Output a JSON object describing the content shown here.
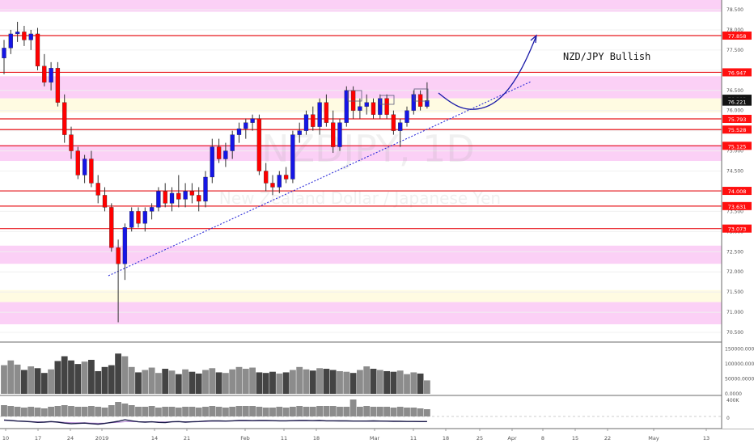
{
  "watermark": {
    "symbol": "NZDJPY, 1D",
    "name": "New Zealand Dollar / Japanese Yen"
  },
  "annotation": {
    "title": "NZD/JPY Bullish"
  },
  "colors": {
    "up_candle": "#1515e6",
    "down_candle": "#ff0000",
    "resistance_line": "#e8191f",
    "pink_zone": "#fbd0f6",
    "yellow_zone": "#fffbe2",
    "trendline": "#2b2bd9",
    "arrow": "#1a1aa8",
    "volume_up": "#8c8c8c",
    "volume_down": "#444444",
    "indicator_bar": "#8c8c8c",
    "price_tag": "#ff1010"
  },
  "chart_data": {
    "type": "candlestick",
    "price_axis": {
      "ylim": [
        70.4,
        78.85
      ],
      "ticks": [
        "78.500",
        "78.000",
        "77.500",
        "77.000",
        "76.500",
        "76.000",
        "75.500",
        "75.000",
        "74.500",
        "74.000",
        "73.500",
        "73.000",
        "72.500",
        "72.000",
        "71.500",
        "71.000",
        "70.500"
      ]
    },
    "time_axis": {
      "ticks": [
        "10",
        "17",
        "24",
        "2019",
        "14",
        "21",
        "Feb",
        "11",
        "18",
        "Mar",
        "11",
        "18",
        "25",
        "Apr",
        "8",
        "15",
        "22",
        "May",
        "13"
      ]
    },
    "resistance_levels": [
      {
        "value": 77.858,
        "label": "77.858"
      },
      {
        "value": 76.947,
        "label": "76.947"
      },
      {
        "value": 75.793,
        "label": "75.793"
      },
      {
        "value": 75.528,
        "label": "75.528"
      },
      {
        "value": 75.125,
        "label": "75.125"
      },
      {
        "value": 74.008,
        "label": "74.008"
      },
      {
        "value": 73.631,
        "label": "73.631"
      },
      {
        "value": 73.073,
        "label": "73.073"
      }
    ],
    "price_tags": [
      {
        "value": 76.293,
        "label": "76.293",
        "style": "dark"
      },
      {
        "value": 76.221,
        "label": "76.221",
        "style": "dark"
      }
    ],
    "zones": [
      {
        "color": "pink",
        "from": 78.45,
        "to": 78.85
      },
      {
        "color": "pink",
        "from": 76.3,
        "to": 76.85
      },
      {
        "color": "yellow",
        "from": 75.95,
        "to": 76.3
      },
      {
        "color": "pink",
        "from": 74.75,
        "to": 75.15
      },
      {
        "color": "pink",
        "from": 72.2,
        "to": 72.65
      },
      {
        "color": "yellow",
        "from": 71.25,
        "to": 71.55
      },
      {
        "color": "pink",
        "from": 70.7,
        "to": 71.25
      }
    ],
    "candles": [
      {
        "o": 77.3,
        "h": 77.75,
        "l": 76.9,
        "c": 77.55
      },
      {
        "o": 77.55,
        "h": 78.0,
        "l": 77.4,
        "c": 77.9
      },
      {
        "o": 77.9,
        "h": 78.2,
        "l": 77.7,
        "c": 77.95
      },
      {
        "o": 77.95,
        "h": 78.1,
        "l": 77.6,
        "c": 77.75
      },
      {
        "o": 77.75,
        "h": 78.0,
        "l": 77.5,
        "c": 77.9
      },
      {
        "o": 77.9,
        "h": 78.05,
        "l": 77.0,
        "c": 77.1
      },
      {
        "o": 77.1,
        "h": 77.4,
        "l": 76.6,
        "c": 76.7
      },
      {
        "o": 76.7,
        "h": 77.2,
        "l": 76.5,
        "c": 77.05
      },
      {
        "o": 77.05,
        "h": 77.2,
        "l": 76.1,
        "c": 76.2
      },
      {
        "o": 76.2,
        "h": 76.4,
        "l": 75.2,
        "c": 75.4
      },
      {
        "o": 75.4,
        "h": 75.6,
        "l": 74.8,
        "c": 75.0
      },
      {
        "o": 75.0,
        "h": 75.1,
        "l": 74.3,
        "c": 74.4
      },
      {
        "o": 74.4,
        "h": 74.9,
        "l": 74.2,
        "c": 74.8
      },
      {
        "o": 74.8,
        "h": 75.0,
        "l": 74.1,
        "c": 74.2
      },
      {
        "o": 74.2,
        "h": 74.4,
        "l": 73.7,
        "c": 73.9
      },
      {
        "o": 73.9,
        "h": 74.1,
        "l": 73.5,
        "c": 73.6
      },
      {
        "o": 73.6,
        "h": 73.7,
        "l": 72.5,
        "c": 72.6
      },
      {
        "o": 72.6,
        "h": 72.8,
        "l": 70.75,
        "c": 72.2
      },
      {
        "o": 72.2,
        "h": 73.2,
        "l": 71.8,
        "c": 73.1
      },
      {
        "o": 73.1,
        "h": 73.6,
        "l": 73.0,
        "c": 73.5
      },
      {
        "o": 73.5,
        "h": 73.6,
        "l": 73.1,
        "c": 73.2
      },
      {
        "o": 73.2,
        "h": 73.6,
        "l": 73.0,
        "c": 73.5
      },
      {
        "o": 73.5,
        "h": 73.7,
        "l": 73.3,
        "c": 73.6
      },
      {
        "o": 73.6,
        "h": 74.1,
        "l": 73.5,
        "c": 74.0
      },
      {
        "o": 74.0,
        "h": 74.2,
        "l": 73.6,
        "c": 73.7
      },
      {
        "o": 73.7,
        "h": 74.1,
        "l": 73.5,
        "c": 73.95
      },
      {
        "o": 73.95,
        "h": 74.4,
        "l": 73.6,
        "c": 73.8
      },
      {
        "o": 73.8,
        "h": 74.2,
        "l": 73.6,
        "c": 74.0
      },
      {
        "o": 74.0,
        "h": 74.2,
        "l": 73.7,
        "c": 73.9
      },
      {
        "o": 73.9,
        "h": 74.1,
        "l": 73.5,
        "c": 73.75
      },
      {
        "o": 73.75,
        "h": 74.5,
        "l": 73.6,
        "c": 74.35
      },
      {
        "o": 74.35,
        "h": 75.3,
        "l": 74.2,
        "c": 75.1
      },
      {
        "o": 75.1,
        "h": 75.3,
        "l": 74.7,
        "c": 74.8
      },
      {
        "o": 74.8,
        "h": 75.2,
        "l": 74.6,
        "c": 75.0
      },
      {
        "o": 75.0,
        "h": 75.5,
        "l": 74.8,
        "c": 75.4
      },
      {
        "o": 75.4,
        "h": 75.7,
        "l": 75.2,
        "c": 75.55
      },
      {
        "o": 75.55,
        "h": 75.8,
        "l": 75.3,
        "c": 75.7
      },
      {
        "o": 75.7,
        "h": 75.9,
        "l": 75.5,
        "c": 75.8
      },
      {
        "o": 75.8,
        "h": 75.9,
        "l": 74.4,
        "c": 74.5
      },
      {
        "o": 74.5,
        "h": 74.7,
        "l": 74.0,
        "c": 74.2
      },
      {
        "o": 74.2,
        "h": 74.4,
        "l": 73.9,
        "c": 74.1
      },
      {
        "o": 74.1,
        "h": 74.5,
        "l": 73.95,
        "c": 74.4
      },
      {
        "o": 74.4,
        "h": 74.6,
        "l": 74.2,
        "c": 74.3
      },
      {
        "o": 74.3,
        "h": 75.5,
        "l": 74.2,
        "c": 75.4
      },
      {
        "o": 75.4,
        "h": 75.7,
        "l": 75.2,
        "c": 75.5
      },
      {
        "o": 75.5,
        "h": 76.0,
        "l": 75.4,
        "c": 75.9
      },
      {
        "o": 75.9,
        "h": 76.1,
        "l": 75.5,
        "c": 75.6
      },
      {
        "o": 75.6,
        "h": 76.3,
        "l": 75.4,
        "c": 76.2
      },
      {
        "o": 76.2,
        "h": 76.4,
        "l": 75.6,
        "c": 75.7
      },
      {
        "o": 75.7,
        "h": 76.0,
        "l": 74.95,
        "c": 75.1
      },
      {
        "o": 75.1,
        "h": 75.8,
        "l": 75.0,
        "c": 75.7
      },
      {
        "o": 75.7,
        "h": 76.6,
        "l": 75.6,
        "c": 76.5
      },
      {
        "o": 76.5,
        "h": 76.6,
        "l": 75.8,
        "c": 76.0
      },
      {
        "o": 76.0,
        "h": 76.3,
        "l": 75.8,
        "c": 76.1
      },
      {
        "o": 76.1,
        "h": 76.4,
        "l": 75.9,
        "c": 76.2
      },
      {
        "o": 76.2,
        "h": 76.3,
        "l": 75.8,
        "c": 75.9
      },
      {
        "o": 75.9,
        "h": 76.4,
        "l": 75.8,
        "c": 76.3
      },
      {
        "o": 76.3,
        "h": 76.4,
        "l": 75.8,
        "c": 75.9
      },
      {
        "o": 75.9,
        "h": 76.0,
        "l": 75.4,
        "c": 75.5
      },
      {
        "o": 75.5,
        "h": 75.8,
        "l": 75.1,
        "c": 75.7
      },
      {
        "o": 75.7,
        "h": 76.1,
        "l": 75.6,
        "c": 76.0
      },
      {
        "o": 76.0,
        "h": 76.5,
        "l": 75.9,
        "c": 76.4
      },
      {
        "o": 76.4,
        "h": 76.5,
        "l": 76.0,
        "c": 76.1
      },
      {
        "o": 76.1,
        "h": 76.7,
        "l": 76.05,
        "c": 76.25
      }
    ],
    "volume_axis": {
      "ticks": [
        "150000.0000",
        "100000.0000",
        "50000.0000",
        "0.0000"
      ]
    },
    "volume": [
      96000,
      112000,
      98000,
      80000,
      92000,
      86000,
      70000,
      82000,
      110000,
      126000,
      112000,
      100000,
      108000,
      114000,
      76000,
      90000,
      96000,
      135000,
      126000,
      90000,
      72000,
      80000,
      88000,
      70000,
      84000,
      78000,
      66000,
      82000,
      74000,
      68000,
      80000,
      86000,
      72000,
      70000,
      82000,
      90000,
      84000,
      88000,
      72000,
      70000,
      74000,
      68000,
      72000,
      80000,
      90000,
      82000,
      78000,
      86000,
      84000,
      80000,
      76000,
      74000,
      70000,
      80000,
      92000,
      84000,
      80000,
      76000,
      74000,
      78000,
      66000,
      72000,
      68000,
      45000
    ],
    "indicator": {
      "axis_ticks": [
        "400K",
        "0"
      ],
      "bars": [
        14,
        13,
        12,
        11,
        12,
        11,
        10,
        12,
        13,
        14,
        13,
        12,
        12,
        13,
        12,
        11,
        14,
        18,
        16,
        14,
        12,
        12,
        13,
        11,
        12,
        12,
        11,
        12,
        12,
        11,
        12,
        13,
        12,
        11,
        12,
        13,
        13,
        13,
        12,
        11,
        11,
        12,
        11,
        12,
        13,
        12,
        12,
        13,
        13,
        13,
        12,
        12,
        21,
        12,
        13,
        12,
        12,
        12,
        11,
        12,
        11,
        11,
        10,
        9
      ],
      "line": [
        1,
        0.6,
        0.2,
        0,
        -0.4,
        -0.8,
        -0.6,
        -0.2,
        -0.6,
        -1.4,
        -1.8,
        -1.6,
        -1.4,
        -1.8,
        -2.2,
        -1.6,
        -0.8,
        0,
        1.2,
        0.4,
        -0.4,
        -0.6,
        -0.4,
        -0.8,
        -1,
        -0.4,
        -0.2,
        -0.6,
        -0.4,
        -0.2,
        0.2,
        0.4,
        0.3,
        0.2,
        0.4,
        0.6,
        0.6,
        0.5,
        0.6,
        0.6,
        0.5,
        0.4,
        0.4,
        0.5,
        0.6,
        0.6,
        0.5,
        0.6,
        0.4,
        0.4,
        0.3,
        0.3,
        0.2,
        0.2,
        0.2,
        0.3,
        0.2,
        0.1,
        0,
        0,
        -0.1,
        -0.1,
        -0.2,
        -0.2
      ],
      "signal": [
        0.8,
        0.6,
        0.3,
        0,
        -0.2,
        -0.4,
        -0.5,
        -0.4,
        -0.5,
        -0.8,
        -1,
        -1.1,
        -1.1,
        -1.3,
        -1.5,
        -1.4,
        -1.1,
        -0.8,
        -0.3,
        -0.2,
        -0.3,
        -0.4,
        -0.4,
        -0.5,
        -0.5,
        -0.4,
        -0.3,
        -0.3,
        -0.3,
        -0.2,
        -0.1,
        0.1,
        0.2,
        0.2,
        0.3,
        0.4,
        0.4,
        0.4,
        0.5,
        0.5,
        0.5,
        0.4,
        0.4,
        0.4,
        0.5,
        0.5,
        0.5,
        0.5,
        0.4,
        0.4,
        0.4,
        0.3,
        0.3,
        0.3,
        0.2,
        0.2,
        0.2,
        0.1,
        0.1,
        0,
        0,
        -0.1,
        -0.1,
        -0.1
      ]
    }
  }
}
